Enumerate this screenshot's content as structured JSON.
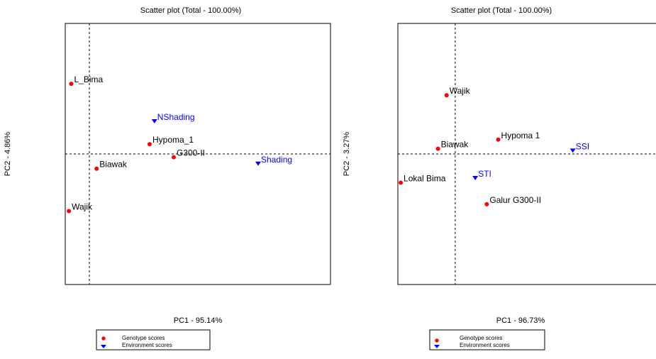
{
  "chart_data": [
    {
      "type": "scatter",
      "title": "Scatter plot (Total - 100.00%)",
      "xlabel": "PC1 - 95.14%",
      "ylabel": "PC2 - 4.86%",
      "xlim": [
        -1.0,
        10.0
      ],
      "ylim": [
        -4.0,
        4.0
      ],
      "origin_lines": true,
      "series": [
        {
          "name": "Genotype scores",
          "color": "#ff0000",
          "marker": "circle",
          "points": [
            {
              "label": "L_Bima",
              "x": -0.75,
              "y": 2.15
            },
            {
              "label": "Hypoma_1",
              "x": 2.5,
              "y": 0.3
            },
            {
              "label": "G300-II",
              "x": 3.5,
              "y": -0.1
            },
            {
              "label": "Biawak",
              "x": 0.3,
              "y": -0.45
            },
            {
              "label": "Wajik",
              "x": -0.85,
              "y": -1.75
            }
          ]
        },
        {
          "name": "Environment scores",
          "color": "#0000ff",
          "marker": "triangle-down",
          "points": [
            {
              "label": "NShading",
              "x": 2.7,
              "y": 1.0
            },
            {
              "label": "Shading",
              "x": 7.0,
              "y": -0.3
            }
          ]
        }
      ],
      "legend": {
        "position": "bottom",
        "items": [
          "Genotype scores",
          "Environment scores"
        ]
      }
    },
    {
      "type": "scatter",
      "title": "Scatter plot (Total - 100.00%)",
      "xlabel": "PC1 - 96.73%",
      "ylabel": "PC2 - 3.27%",
      "xlim": [
        -1.0,
        3.5
      ],
      "ylim": [
        -2.0,
        2.0
      ],
      "origin_lines": true,
      "series": [
        {
          "name": "Genotype scores",
          "color": "#ff0000",
          "marker": "circle",
          "points": [
            {
              "label": "Wajik",
              "x": -0.15,
              "y": 0.9
            },
            {
              "label": "Biawak",
              "x": -0.3,
              "y": 0.08
            },
            {
              "label": "Hypoma 1",
              "x": 0.75,
              "y": 0.22
            },
            {
              "label": "Lokal Bima",
              "x": -0.95,
              "y": -0.44
            },
            {
              "label": "Galur G300-II",
              "x": 0.55,
              "y": -0.77
            }
          ]
        },
        {
          "name": "Environment scores",
          "color": "#0000ff",
          "marker": "triangle-down",
          "points": [
            {
              "label": "STI",
              "x": 0.35,
              "y": -0.37
            },
            {
              "label": "SSI",
              "x": 2.05,
              "y": 0.05
            }
          ]
        }
      ],
      "legend": {
        "position": "bottom",
        "items": [
          "Genotype scores",
          "Environment scores"
        ]
      }
    }
  ]
}
